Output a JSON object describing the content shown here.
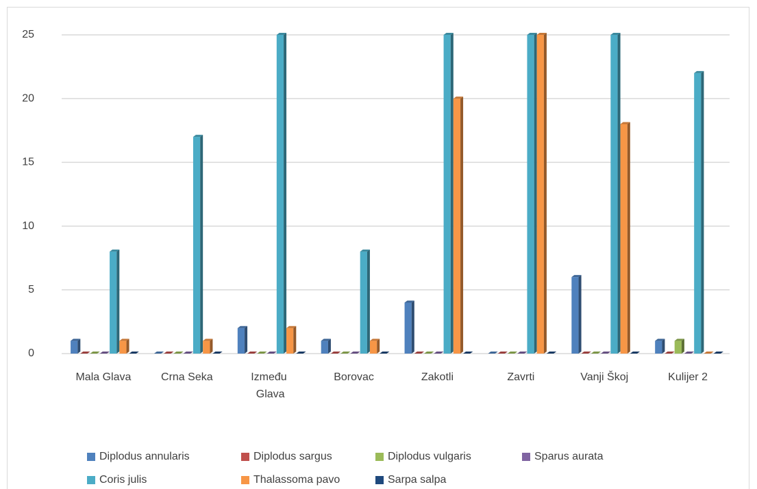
{
  "chart_data": {
    "type": "bar",
    "categories": [
      "Mala Glava",
      "Crna Seka",
      "Između Glava",
      "Borovac",
      "Zakotli",
      "Zavrti",
      "Vanji Škoj",
      "Kulijer 2"
    ],
    "series": [
      {
        "name": "Diplodus annularis",
        "color": "#4f81bd",
        "values": [
          1,
          0,
          2,
          1,
          4,
          0,
          6,
          1
        ]
      },
      {
        "name": "Diplodus sargus",
        "color": "#c0504d",
        "values": [
          0,
          0,
          0,
          0,
          0,
          0,
          0,
          0
        ]
      },
      {
        "name": "Diplodus vulgaris",
        "color": "#9bbb59",
        "values": [
          0,
          0,
          0,
          0,
          0,
          0,
          0,
          1
        ]
      },
      {
        "name": "Sparus aurata",
        "color": "#8064a2",
        "values": [
          0,
          0,
          0,
          0,
          0,
          0,
          0,
          0
        ]
      },
      {
        "name": "Coris julis",
        "color": "#4bacc6",
        "values": [
          8,
          17,
          25,
          8,
          25,
          25,
          25,
          22
        ]
      },
      {
        "name": "Thalassoma pavo",
        "color": "#f79646",
        "values": [
          1,
          1,
          2,
          1,
          20,
          25,
          18,
          0
        ]
      },
      {
        "name": "Sarpa salpa",
        "color": "#1f497d",
        "values": [
          0,
          0,
          0,
          0,
          0,
          0,
          0,
          0
        ]
      }
    ],
    "ylim": [
      0,
      25
    ],
    "yticks": [
      0,
      5,
      10,
      15,
      20,
      25
    ],
    "grid": true,
    "legend": "bottom"
  }
}
